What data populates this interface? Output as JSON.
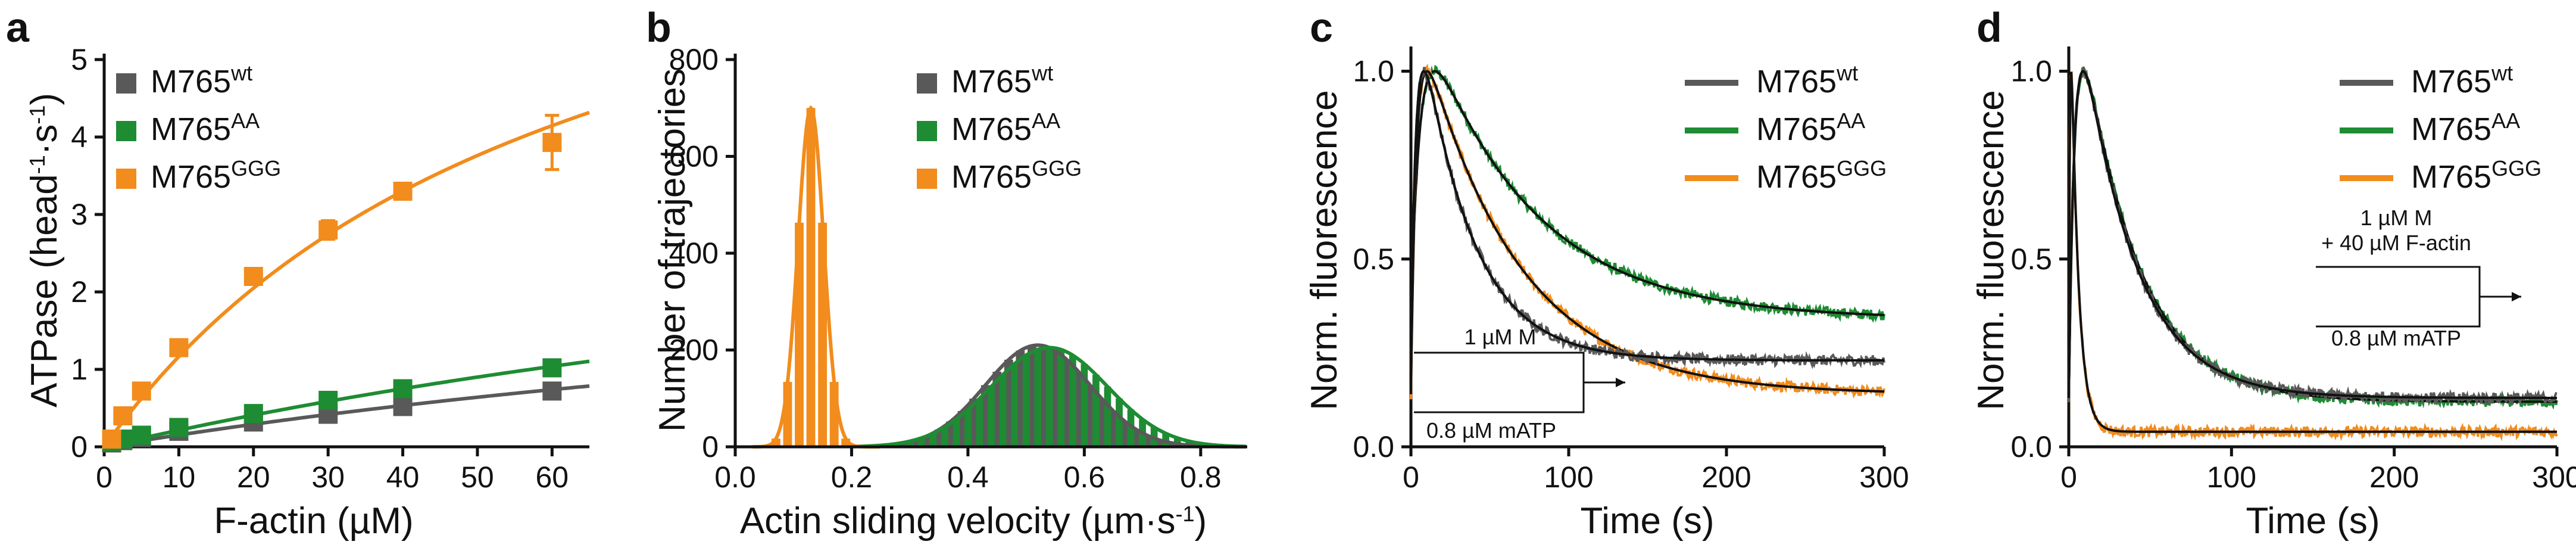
{
  "colors": {
    "wt": "#595959",
    "AA": "#1e8c33",
    "GGG": "#f28c1c",
    "fit": "#111111"
  },
  "chart_data": [
    {
      "panel": "a",
      "type": "scatter",
      "ylabel_main": "ATPase (head",
      "ylabel_sup1": "-1",
      "ylabel_mid": "·s",
      "ylabel_sup2": "-1",
      "ylabel_end": ")",
      "xlabel": "F-actin (µM)",
      "xlim": [
        0,
        65
      ],
      "ylim": [
        0,
        5
      ],
      "xticks": [
        0,
        10,
        20,
        30,
        40,
        50,
        60
      ],
      "yticks": [
        0,
        1,
        2,
        3,
        4,
        5
      ],
      "series": [
        {
          "name": "M765",
          "sup": "wt",
          "color": "wt",
          "x": [
            1,
            2.5,
            5,
            10,
            20,
            30,
            40,
            60
          ],
          "y": [
            0.05,
            0.08,
            0.12,
            0.2,
            0.32,
            0.42,
            0.52,
            0.72
          ],
          "fit": {
            "vmax": 3.2,
            "km": 200
          }
        },
        {
          "name": "M765",
          "sup": "AA",
          "color": "AA",
          "x": [
            1,
            2.5,
            5,
            10,
            20,
            30,
            40,
            60
          ],
          "y": [
            0.07,
            0.1,
            0.15,
            0.25,
            0.43,
            0.6,
            0.75,
            1.02
          ],
          "fit": {
            "vmax": 4.5,
            "km": 200
          }
        },
        {
          "name": "M765",
          "sup": "GGG",
          "color": "GGG",
          "x": [
            1,
            2.5,
            5,
            10,
            20,
            30,
            40,
            60
          ],
          "y": [
            0.1,
            0.4,
            0.72,
            1.28,
            2.2,
            2.8,
            3.3,
            3.93
          ],
          "err": [
            0.05,
            0.05,
            0.06,
            0.08,
            0.08,
            0.12,
            0.1,
            0.35
          ],
          "fit": {
            "vmax": 8.5,
            "km": 63
          }
        }
      ]
    },
    {
      "panel": "b",
      "type": "bar",
      "ylabel": "Number of trajectories",
      "xlabel": "Actin sliding velocity (µm·s",
      "xlabel_sup": "-1",
      "xlabel_end": ")",
      "xlim": [
        0,
        0.88
      ],
      "ylim": [
        0,
        800
      ],
      "xticks": [
        0.0,
        0.2,
        0.4,
        0.6,
        0.8
      ],
      "yticks": [
        0,
        200,
        400,
        600,
        800
      ],
      "bin_width": 0.02,
      "series": [
        {
          "name": "M765",
          "sup": "wt",
          "color": "wt",
          "gauss": {
            "amp": 210,
            "mu": 0.52,
            "sigma": 0.09
          }
        },
        {
          "name": "M765",
          "sup": "AA",
          "color": "AA",
          "gauss": {
            "amp": 205,
            "mu": 0.54,
            "sigma": 0.1
          }
        },
        {
          "name": "M765",
          "sup": "GGG",
          "color": "GGG",
          "gauss": {
            "amp": 700,
            "mu": 0.13,
            "sigma": 0.022
          }
        }
      ]
    },
    {
      "panel": "c",
      "type": "line",
      "ylabel": "Norm. fluorescence",
      "xlabel": "Time (s)",
      "xlim": [
        0,
        300
      ],
      "ylim": [
        0,
        1.05
      ],
      "xticks": [
        0,
        100,
        200,
        300
      ],
      "yticks": [
        0.0,
        0.5,
        1.0
      ],
      "yticklabels": [
        "0.0",
        "0.5",
        "1.0"
      ],
      "annotation": {
        "top": "1 µM M",
        "bottom": "0.8 µM mATP"
      },
      "series": [
        {
          "name": "M765",
          "sup": "wt",
          "color": "wt",
          "trace": {
            "rise": 3.5,
            "decay": 32,
            "plateau": 0.23
          }
        },
        {
          "name": "M765",
          "sup": "AA",
          "color": "AA",
          "trace": {
            "rise": 6,
            "decay": 68,
            "plateau": 0.34
          }
        },
        {
          "name": "M765",
          "sup": "GGG",
          "color": "GGG",
          "trace": {
            "rise": 3.5,
            "decay": 60,
            "plateau": 0.14
          }
        }
      ]
    },
    {
      "panel": "d",
      "type": "line",
      "ylabel": "Norm. fluorescence",
      "xlabel": "Time (s)",
      "xlim": [
        0,
        300
      ],
      "ylim": [
        0,
        1.05
      ],
      "xticks": [
        0,
        100,
        200,
        300
      ],
      "yticks": [
        0.0,
        0.5,
        1.0
      ],
      "yticklabels": [
        "0.0",
        "0.5",
        "1.0"
      ],
      "annotation": {
        "top": "1 µM M",
        "top2": "+ 40 µM F-actin",
        "bottom": "0.8 µM mATP"
      },
      "series": [
        {
          "name": "M765",
          "sup": "wt",
          "color": "wt",
          "trace": {
            "rise": 4,
            "decay": 32,
            "plateau": 0.13
          }
        },
        {
          "name": "M765",
          "sup": "AA",
          "color": "AA",
          "trace": {
            "rise": 4,
            "decay": 34,
            "plateau": 0.12
          }
        },
        {
          "name": "M765",
          "sup": "GGG",
          "color": "GGG",
          "trace": {
            "rise": 0.7,
            "decay": 4.5,
            "plateau": 0.04
          }
        }
      ]
    }
  ]
}
